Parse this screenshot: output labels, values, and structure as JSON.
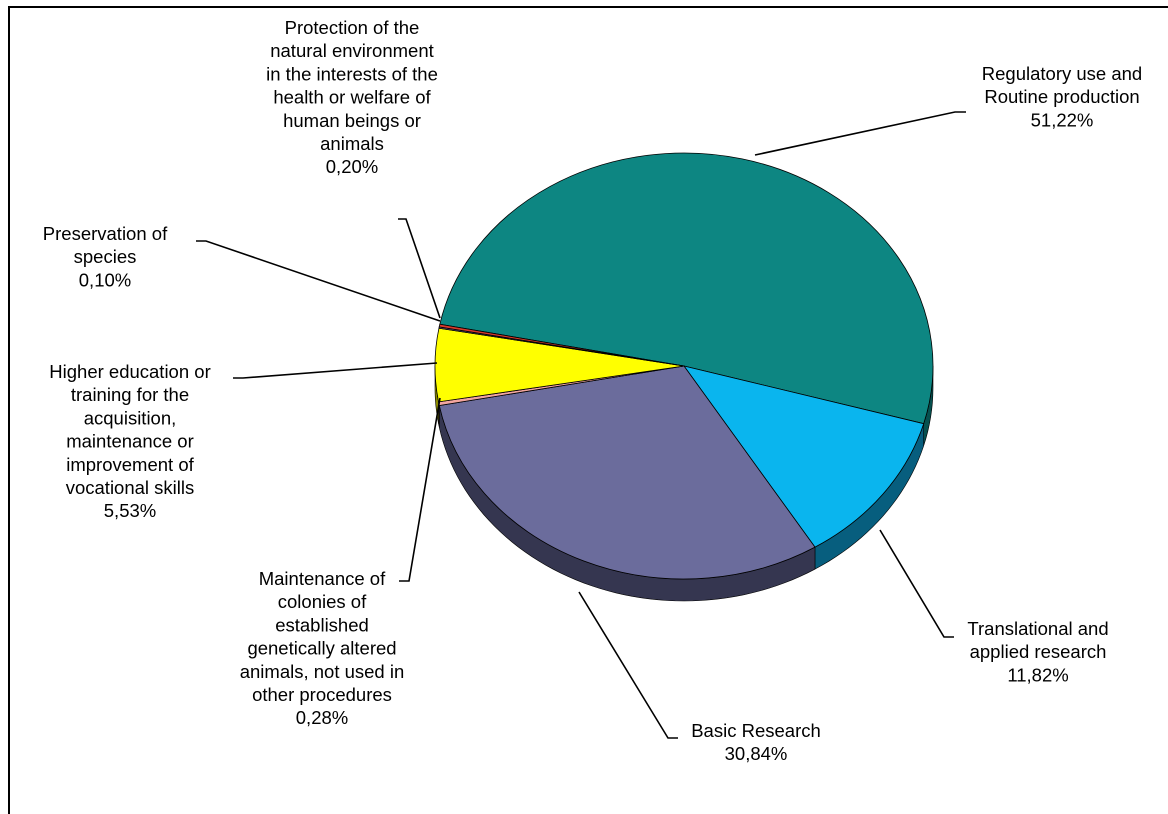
{
  "chart_data": {
    "type": "pie",
    "three_d": true,
    "legend": "none",
    "slices": [
      {
        "lines": [
          "Regulatory use and",
          "Routine production"
        ],
        "value": 51.22,
        "value_label": "51,22%",
        "color": "#0D8682",
        "side_color": "#06504F"
      },
      {
        "lines": [
          "Translational and",
          "applied research"
        ],
        "value": 11.82,
        "value_label": "11,82%",
        "color": "#0AB5EE",
        "side_color": "#075E7E"
      },
      {
        "lines": [
          "Basic Research"
        ],
        "value": 30.84,
        "value_label": "30,84%",
        "color": "#6B6C9C",
        "side_color": "#353650"
      },
      {
        "lines": [
          "Maintenance of",
          "colonies of",
          "established",
          "genetically altered",
          "animals, not used in",
          "other procedures"
        ],
        "value": 0.28,
        "value_label": "0,28%",
        "color": "#F4A6A0",
        "side_color": "#8A5A56"
      },
      {
        "lines": [
          "Higher education or",
          "training for the",
          "acquisition,",
          "maintenance or",
          "improvement of",
          "vocational skills"
        ],
        "value": 5.53,
        "value_label": "5,53%",
        "color": "#FFFF00",
        "side_color": "#8C8C00"
      },
      {
        "lines": [
          "Preservation of",
          "species"
        ],
        "value": 0.1,
        "value_label": "0,10%",
        "color": "#6A5A8A",
        "side_color": "#3A3050"
      },
      {
        "lines": [
          "Protection of the",
          "natural environment",
          "in the interests of the",
          "health or welfare of",
          "human beings or",
          "animals"
        ],
        "value": 0.2,
        "value_label": "0,20%",
        "color": "#D93A2B",
        "side_color": "#7A2018"
      }
    ]
  }
}
